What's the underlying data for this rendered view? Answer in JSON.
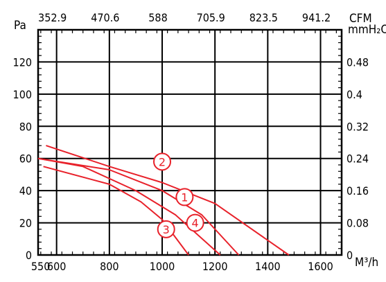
{
  "chart_data": {
    "type": "line",
    "title": "",
    "x_axis_bottom": {
      "label": "M³/h",
      "ticks": [
        "550",
        "600",
        "800",
        "1000",
        "1200",
        "1400",
        "1600"
      ],
      "range": [
        530,
        1680
      ]
    },
    "x_axis_top": {
      "label": "CFM",
      "ticks": [
        "352.9",
        "470.6",
        "588",
        "705.9",
        "823.5",
        "941.2"
      ]
    },
    "y_axis_left": {
      "label": "Pa",
      "ticks": [
        "0",
        "20",
        "40",
        "60",
        "80",
        "100",
        "120"
      ],
      "range": [
        0,
        140
      ]
    },
    "y_axis_right": {
      "label": "mmH₂O",
      "ticks": [
        "0",
        "0.08",
        "0.16",
        "0.24",
        "0.32",
        "0.4",
        "0.48"
      ]
    },
    "grid": true,
    "series_color": "#e8212a",
    "series": [
      {
        "badge": "1",
        "x": [
          530,
          800,
          1000,
          1150,
          1290
        ],
        "y": [
          60,
          53,
          40,
          25,
          0
        ]
      },
      {
        "badge": "2",
        "x": [
          560,
          800,
          1000,
          1200,
          1480
        ],
        "y": [
          68,
          55,
          45,
          32,
          0
        ]
      },
      {
        "badge": "3",
        "x": [
          550,
          800,
          920,
          1000,
          1100
        ],
        "y": [
          55,
          44,
          33,
          22,
          0
        ]
      },
      {
        "badge": "4",
        "x": [
          530,
          700,
          900,
          1050,
          1220
        ],
        "y": [
          60,
          55,
          40,
          25,
          0
        ]
      }
    ],
    "badges": [
      {
        "text": "1",
        "x": 1085,
        "y": 36
      },
      {
        "text": "2",
        "x": 1000,
        "y": 58
      },
      {
        "text": "3",
        "x": 1015,
        "y": 16
      },
      {
        "text": "4",
        "x": 1125,
        "y": 20
      }
    ]
  }
}
